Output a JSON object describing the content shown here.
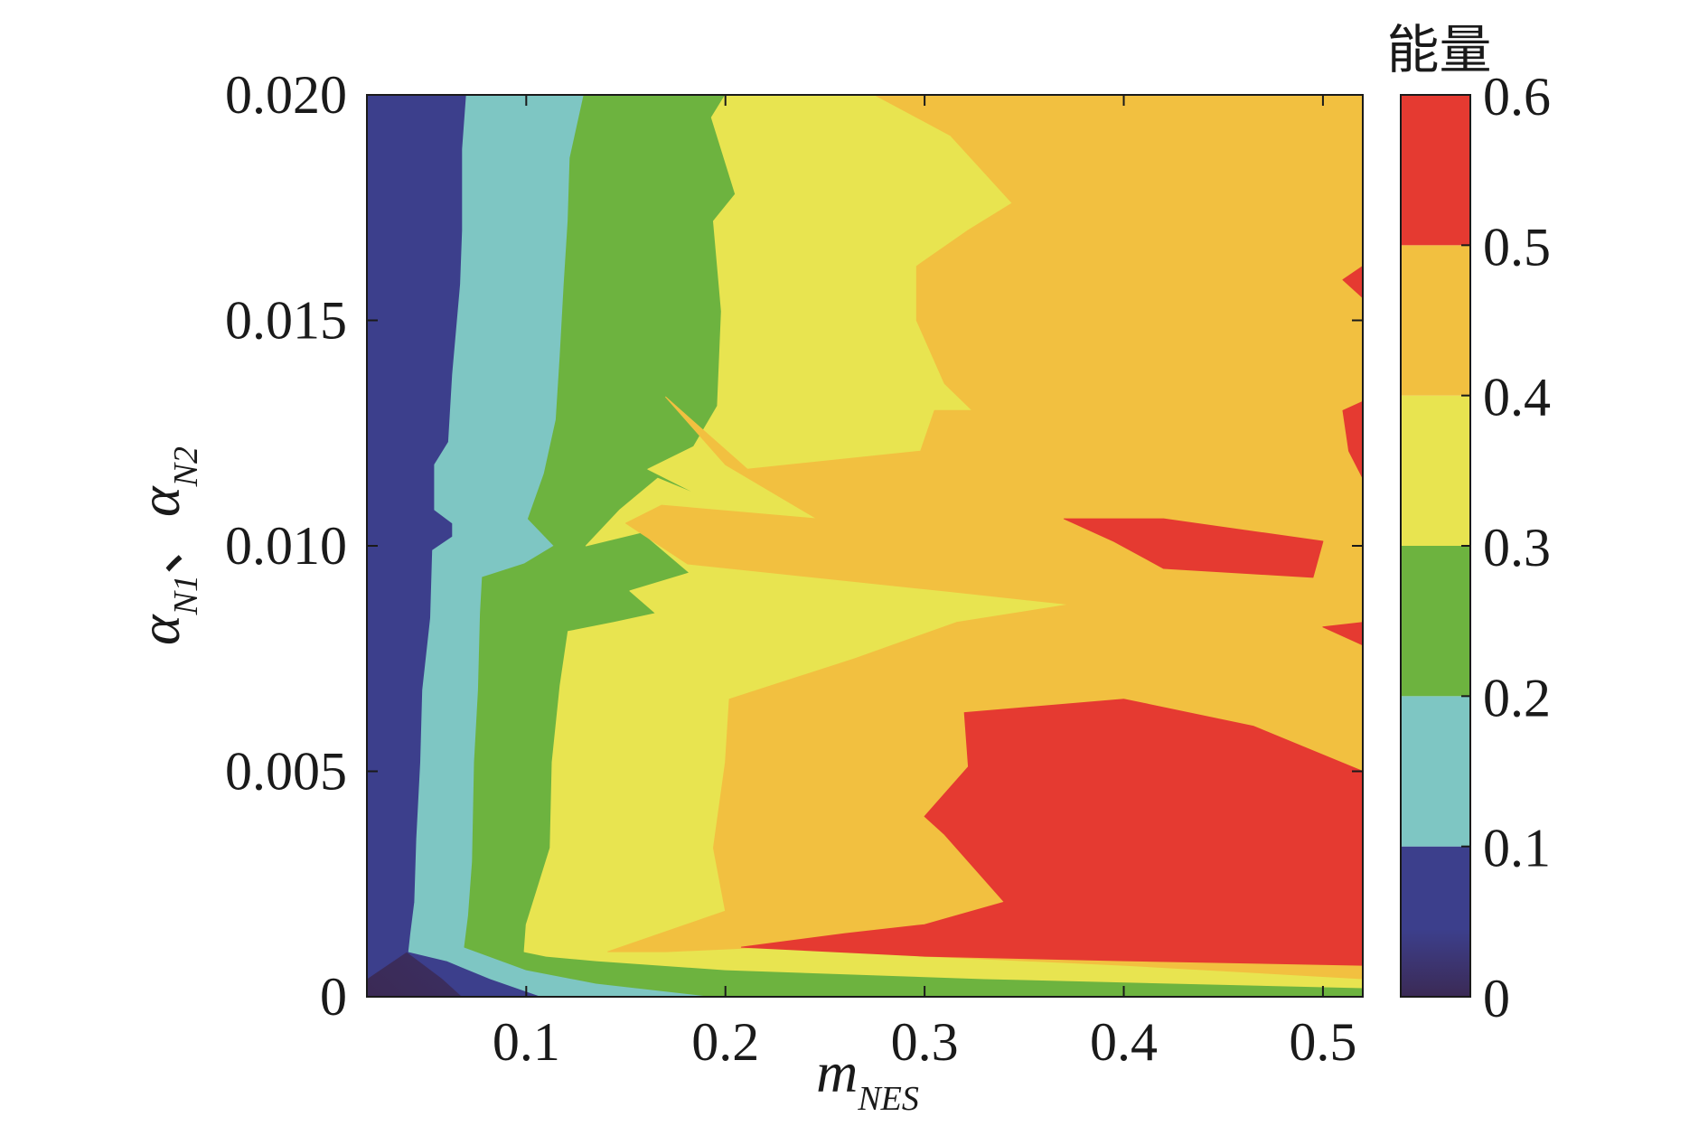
{
  "chart_data": {
    "type": "heatmap",
    "subtype": "filled-contour",
    "title": "",
    "xlabel": {
      "main": "m",
      "sub": "NES"
    },
    "ylabel": {
      "part1_main": "α",
      "part1_sub": "N1",
      "separator": "、",
      "part2_main": "α",
      "part2_sub": "N2"
    },
    "xlim": [
      0.02,
      0.52
    ],
    "ylim": [
      0,
      0.02
    ],
    "xticks": [
      {
        "value": 0.1,
        "label": "0.1"
      },
      {
        "value": 0.2,
        "label": "0.2"
      },
      {
        "value": 0.3,
        "label": "0.3"
      },
      {
        "value": 0.4,
        "label": "0.4"
      },
      {
        "value": 0.5,
        "label": "0.5"
      }
    ],
    "yticks": [
      {
        "value": 0,
        "label": "0"
      },
      {
        "value": 0.005,
        "label": "0.005"
      },
      {
        "value": 0.01,
        "label": "0.010"
      },
      {
        "value": 0.015,
        "label": "0.015"
      },
      {
        "value": 0.02,
        "label": "0.020"
      }
    ],
    "colorbar": {
      "title": "能量",
      "placement": "right",
      "ticks": [
        {
          "value": 0,
          "label": "0"
        },
        {
          "value": 0.1,
          "label": "0.1"
        },
        {
          "value": 0.2,
          "label": "0.2"
        },
        {
          "value": 0.3,
          "label": "0.3"
        },
        {
          "value": 0.4,
          "label": "0.4"
        },
        {
          "value": 0.5,
          "label": "0.5"
        },
        {
          "value": 0.6,
          "label": "0.6"
        }
      ],
      "levels": [
        {
          "from": 0.0,
          "to": 0.1,
          "color": "#3c3f8c"
        },
        {
          "from": 0.1,
          "to": 0.2,
          "color": "#7ec6c3"
        },
        {
          "from": 0.2,
          "to": 0.3,
          "color": "#6db33f"
        },
        {
          "from": 0.3,
          "to": 0.4,
          "color": "#e8e450"
        },
        {
          "from": 0.4,
          "to": 0.5,
          "color": "#f2c040"
        },
        {
          "from": 0.5,
          "to": 0.6,
          "color": "#e53a31"
        }
      ],
      "low_color": "#3b2a55"
    },
    "regions": [
      {
        "level": 1,
        "points": [
          [
            0.02,
            0.0004
          ],
          [
            0.04,
            0.001
          ],
          [
            0.058,
            0.0004
          ],
          [
            0.068,
            0
          ],
          [
            0.52,
            0
          ],
          [
            0.52,
            0.02
          ],
          [
            0.02,
            0.02
          ]
        ]
      },
      {
        "level": 2,
        "points": [
          [
            0.041,
            0.001
          ],
          [
            0.042,
            0.0014
          ],
          [
            0.044,
            0.0021
          ],
          [
            0.045,
            0.0035
          ],
          [
            0.047,
            0.0052
          ],
          [
            0.048,
            0.0068
          ],
          [
            0.052,
            0.0084
          ],
          [
            0.053,
            0.0099
          ],
          [
            0.063,
            0.0102
          ],
          [
            0.063,
            0.0105
          ],
          [
            0.054,
            0.0108
          ],
          [
            0.054,
            0.0118
          ],
          [
            0.061,
            0.0123
          ],
          [
            0.063,
            0.0138
          ],
          [
            0.065,
            0.0148
          ],
          [
            0.067,
            0.0158
          ],
          [
            0.068,
            0.017
          ],
          [
            0.068,
            0.0188
          ],
          [
            0.07,
            0.02
          ],
          [
            0.52,
            0.02
          ],
          [
            0.52,
            0
          ],
          [
            0.108,
            0
          ],
          [
            0.082,
            0.0004
          ],
          [
            0.06,
            0.0008
          ]
        ]
      },
      {
        "level": 3,
        "points": [
          [
            0.069,
            0.0011
          ],
          [
            0.071,
            0.0018
          ],
          [
            0.073,
            0.003
          ],
          [
            0.074,
            0.0052
          ],
          [
            0.076,
            0.0068
          ],
          [
            0.077,
            0.0085
          ],
          [
            0.078,
            0.0093
          ],
          [
            0.099,
            0.0096
          ],
          [
            0.114,
            0.01
          ],
          [
            0.101,
            0.0106
          ],
          [
            0.109,
            0.0116
          ],
          [
            0.115,
            0.0128
          ],
          [
            0.117,
            0.0142
          ],
          [
            0.119,
            0.0158
          ],
          [
            0.121,
            0.0172
          ],
          [
            0.122,
            0.0186
          ],
          [
            0.129,
            0.02
          ],
          [
            0.52,
            0.02
          ],
          [
            0.52,
            0
          ],
          [
            0.195,
            0
          ],
          [
            0.135,
            0.0003
          ],
          [
            0.1,
            0.0006
          ]
        ]
      },
      {
        "level": 4,
        "points": [
          [
            0.099,
            0.001
          ],
          [
            0.1,
            0.0016
          ],
          [
            0.112,
            0.0033
          ],
          [
            0.113,
            0.0052
          ],
          [
            0.117,
            0.0069
          ],
          [
            0.121,
            0.0081
          ],
          [
            0.144,
            0.0083
          ],
          [
            0.165,
            0.0085
          ],
          [
            0.152,
            0.009
          ],
          [
            0.182,
            0.0094
          ],
          [
            0.158,
            0.0103
          ],
          [
            0.13,
            0.01
          ],
          [
            0.147,
            0.0108
          ],
          [
            0.166,
            0.0115
          ],
          [
            0.188,
            0.0111
          ],
          [
            0.161,
            0.0117
          ],
          [
            0.184,
            0.0122
          ],
          [
            0.196,
            0.0131
          ],
          [
            0.198,
            0.0152
          ],
          [
            0.194,
            0.0172
          ],
          [
            0.205,
            0.0178
          ],
          [
            0.193,
            0.0195
          ],
          [
            0.2,
            0.02
          ],
          [
            0.52,
            0.02
          ],
          [
            0.52,
            0.0002
          ],
          [
            0.33,
            0.0004
          ],
          [
            0.2,
            0.0006
          ],
          [
            0.135,
            0.0008
          ],
          [
            0.11,
            0.0009
          ]
        ]
      },
      {
        "level": 5,
        "points": [
          [
            0.141,
            0.001
          ],
          [
            0.2,
            0.0019
          ],
          [
            0.194,
            0.0033
          ],
          [
            0.2,
            0.0052
          ],
          [
            0.202,
            0.0066
          ],
          [
            0.265,
            0.0075
          ],
          [
            0.316,
            0.0083
          ],
          [
            0.373,
            0.0087
          ],
          [
            0.31,
            0.009
          ],
          [
            0.181,
            0.0096
          ],
          [
            0.15,
            0.0105
          ],
          [
            0.168,
            0.0109
          ],
          [
            0.246,
            0.0106
          ],
          [
            0.2,
            0.0118
          ],
          [
            0.17,
            0.0133
          ],
          [
            0.211,
            0.0117
          ],
          [
            0.298,
            0.0121
          ],
          [
            0.305,
            0.013
          ],
          [
            0.324,
            0.013
          ],
          [
            0.31,
            0.0136
          ],
          [
            0.296,
            0.015
          ],
          [
            0.296,
            0.0162
          ],
          [
            0.322,
            0.017
          ],
          [
            0.344,
            0.0176
          ],
          [
            0.313,
            0.0191
          ],
          [
            0.275,
            0.02
          ],
          [
            0.52,
            0.02
          ],
          [
            0.52,
            0.0004
          ],
          [
            0.4,
            0.0007
          ],
          [
            0.3,
            0.0009
          ],
          [
            0.22,
            0.0011
          ],
          [
            0.17,
            0.001
          ]
        ]
      },
      {
        "level": 6,
        "points": [
          [
            0.208,
            0.0011
          ],
          [
            0.26,
            0.0014
          ],
          [
            0.3,
            0.0016
          ],
          [
            0.34,
            0.0021
          ],
          [
            0.31,
            0.0036
          ],
          [
            0.3,
            0.004
          ],
          [
            0.322,
            0.0051
          ],
          [
            0.32,
            0.0063
          ],
          [
            0.4,
            0.0066
          ],
          [
            0.465,
            0.006
          ],
          [
            0.52,
            0.005
          ],
          [
            0.52,
            0.0007
          ],
          [
            0.4,
            0.0008
          ],
          [
            0.3,
            0.0009
          ]
        ]
      },
      {
        "level": 6,
        "points": [
          [
            0.37,
            0.0106
          ],
          [
            0.42,
            0.0106
          ],
          [
            0.5,
            0.0101
          ],
          [
            0.495,
            0.0093
          ],
          [
            0.42,
            0.0095
          ],
          [
            0.395,
            0.0101
          ]
        ]
      },
      {
        "level": 6,
        "points": [
          [
            0.52,
            0.0162
          ],
          [
            0.51,
            0.0159
          ],
          [
            0.52,
            0.0155
          ]
        ]
      },
      {
        "level": 6,
        "points": [
          [
            0.52,
            0.0132
          ],
          [
            0.51,
            0.013
          ],
          [
            0.513,
            0.0121
          ],
          [
            0.52,
            0.0115
          ]
        ]
      },
      {
        "level": 6,
        "points": [
          [
            0.52,
            0.0083
          ],
          [
            0.5,
            0.0082
          ],
          [
            0.52,
            0.0078
          ]
        ]
      }
    ]
  }
}
